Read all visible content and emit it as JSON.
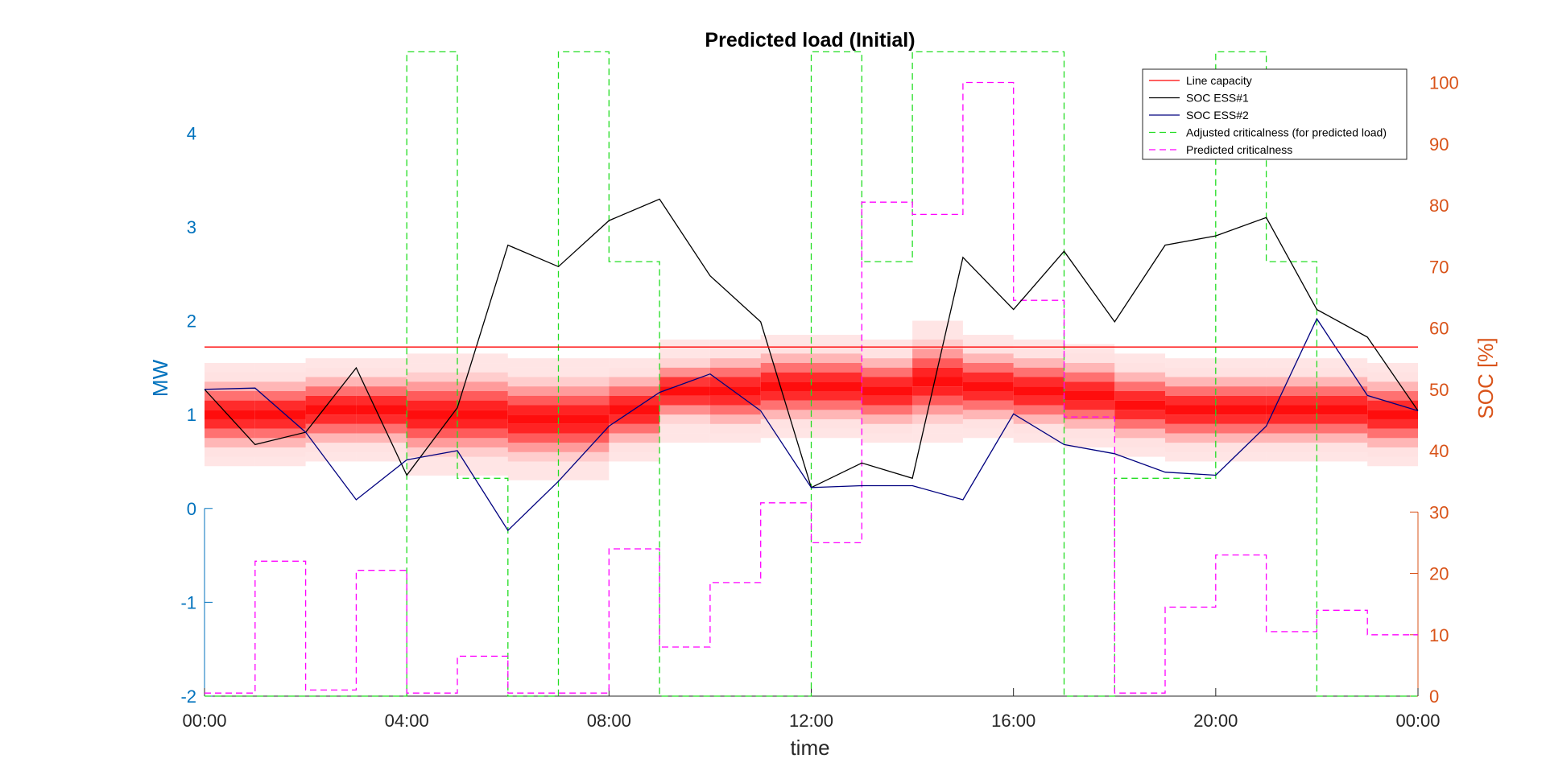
{
  "chart_data": {
    "type": "line",
    "title": "Predicted load (Initial)",
    "xlabel": "time",
    "ylabel_left": "MW",
    "ylabel_right": "SOC [%]",
    "x_tick_labels": [
      "00:00",
      "04:00",
      "08:00",
      "12:00",
      "16:00",
      "20:00",
      "00:00"
    ],
    "x_tick_hours": [
      0,
      4,
      8,
      12,
      16,
      20,
      24
    ],
    "xlim_hours": [
      0,
      24
    ],
    "left_axis": {
      "ylim": [
        -2,
        4.8
      ],
      "ticks": [
        -2,
        -1,
        0,
        1,
        2,
        3,
        4
      ],
      "color": "#0072BD"
    },
    "right_axis": {
      "ylim": [
        0,
        104
      ],
      "ticks": [
        0,
        10,
        20,
        30,
        40,
        50,
        60,
        70,
        80,
        90,
        100
      ],
      "color": "#D95319"
    },
    "colors": {
      "line_capacity": "#ff0000",
      "soc_ess1": "#000000",
      "soc_ess2": "#00007f",
      "adjusted_criticalness": "#22dd22",
      "predicted_criticalness": "#ff00ff",
      "load_band": "#ff0000"
    },
    "legend": {
      "position": "top-right",
      "entries": [
        "Line capacity",
        "SOC ESS#1",
        "SOC ESS#2",
        "Adjusted criticalness (for predicted load)",
        "Predicted criticalness"
      ]
    },
    "line_capacity_mw": 1.72,
    "series": [
      {
        "name": "SOC ESS#1",
        "axis": "right",
        "x_hours": [
          0,
          1,
          2,
          3,
          4,
          5,
          6,
          7,
          8,
          9,
          10,
          11,
          12,
          13,
          14,
          15,
          16,
          17,
          18,
          19,
          20,
          21,
          22,
          23,
          24
        ],
        "values": [
          50,
          41,
          43,
          53.5,
          36,
          47,
          73.5,
          70,
          77.5,
          81,
          68.5,
          61,
          34,
          38,
          35.5,
          71.5,
          63,
          72.5,
          61,
          73.5,
          75,
          78,
          63,
          58.5,
          46.5
        ]
      },
      {
        "name": "SOC ESS#2",
        "axis": "right",
        "x_hours": [
          0,
          1,
          2,
          3,
          4,
          5,
          6,
          7,
          8,
          9,
          10,
          11,
          12,
          13,
          14,
          15,
          16,
          17,
          18,
          19,
          20,
          21,
          22,
          23,
          24
        ],
        "values": [
          50,
          50.2,
          43,
          32,
          38.5,
          40,
          27,
          35,
          44,
          49.5,
          52.5,
          46.5,
          34,
          34.3,
          34.3,
          32,
          46,
          41,
          39.5,
          36.5,
          36,
          44,
          61.5,
          49,
          46.5
        ]
      },
      {
        "name": "Adjusted criticalness (for predicted load)",
        "axis": "right",
        "step": true,
        "dashed": true,
        "x_hours": [
          0,
          1,
          2,
          3,
          4,
          5,
          6,
          7,
          8,
          9,
          10,
          11,
          12,
          13,
          14,
          15,
          16,
          17,
          18,
          19,
          20,
          21,
          22,
          23
        ],
        "values": [
          0,
          0,
          0,
          0,
          105,
          35.5,
          0,
          105,
          70.8,
          0,
          0,
          0,
          105,
          70.8,
          105,
          105,
          105,
          0,
          35.5,
          35.5,
          105,
          70.8,
          0,
          0
        ]
      },
      {
        "name": "Predicted criticalness",
        "axis": "right",
        "step": true,
        "dashed": true,
        "x_hours": [
          0,
          1,
          2,
          3,
          4,
          5,
          6,
          7,
          8,
          9,
          10,
          11,
          12,
          13,
          14,
          15,
          16,
          17,
          18,
          19,
          20,
          21,
          22,
          23
        ],
        "values": [
          0.5,
          22,
          1,
          20.5,
          0.5,
          6.5,
          0.5,
          0.5,
          24,
          8,
          18.5,
          31.5,
          25,
          80.5,
          78.5,
          100,
          64.5,
          45.5,
          0.5,
          14.5,
          23,
          10.5,
          14,
          10
        ]
      }
    ],
    "load_distribution": {
      "description": "Predicted load density per hour (MW)",
      "bin_width_mw": 0.1,
      "hours": [
        {
          "h": 0,
          "center": 1.0,
          "spread": 0.3
        },
        {
          "h": 1,
          "center": 1.0,
          "spread": 0.3
        },
        {
          "h": 2,
          "center": 1.05,
          "spread": 0.3
        },
        {
          "h": 3,
          "center": 1.05,
          "spread": 0.3
        },
        {
          "h": 4,
          "center": 1.0,
          "spread": 0.35
        },
        {
          "h": 5,
          "center": 1.0,
          "spread": 0.35
        },
        {
          "h": 6,
          "center": 0.95,
          "spread": 0.35
        },
        {
          "h": 7,
          "center": 0.95,
          "spread": 0.35
        },
        {
          "h": 8,
          "center": 1.05,
          "spread": 0.3
        },
        {
          "h": 9,
          "center": 1.25,
          "spread": 0.25
        },
        {
          "h": 10,
          "center": 1.25,
          "spread": 0.3
        },
        {
          "h": 11,
          "center": 1.3,
          "spread": 0.3
        },
        {
          "h": 12,
          "center": 1.3,
          "spread": 0.3
        },
        {
          "h": 13,
          "center": 1.25,
          "spread": 0.3
        },
        {
          "h": 14,
          "center": 1.35,
          "spread": 0.35
        },
        {
          "h": 15,
          "center": 1.3,
          "spread": 0.3
        },
        {
          "h": 16,
          "center": 1.25,
          "spread": 0.3
        },
        {
          "h": 17,
          "center": 1.2,
          "spread": 0.3
        },
        {
          "h": 18,
          "center": 1.1,
          "spread": 0.3
        },
        {
          "h": 19,
          "center": 1.05,
          "spread": 0.3
        },
        {
          "h": 20,
          "center": 1.05,
          "spread": 0.3
        },
        {
          "h": 21,
          "center": 1.05,
          "spread": 0.3
        },
        {
          "h": 22,
          "center": 1.05,
          "spread": 0.3
        },
        {
          "h": 23,
          "center": 1.0,
          "spread": 0.3
        }
      ]
    }
  }
}
